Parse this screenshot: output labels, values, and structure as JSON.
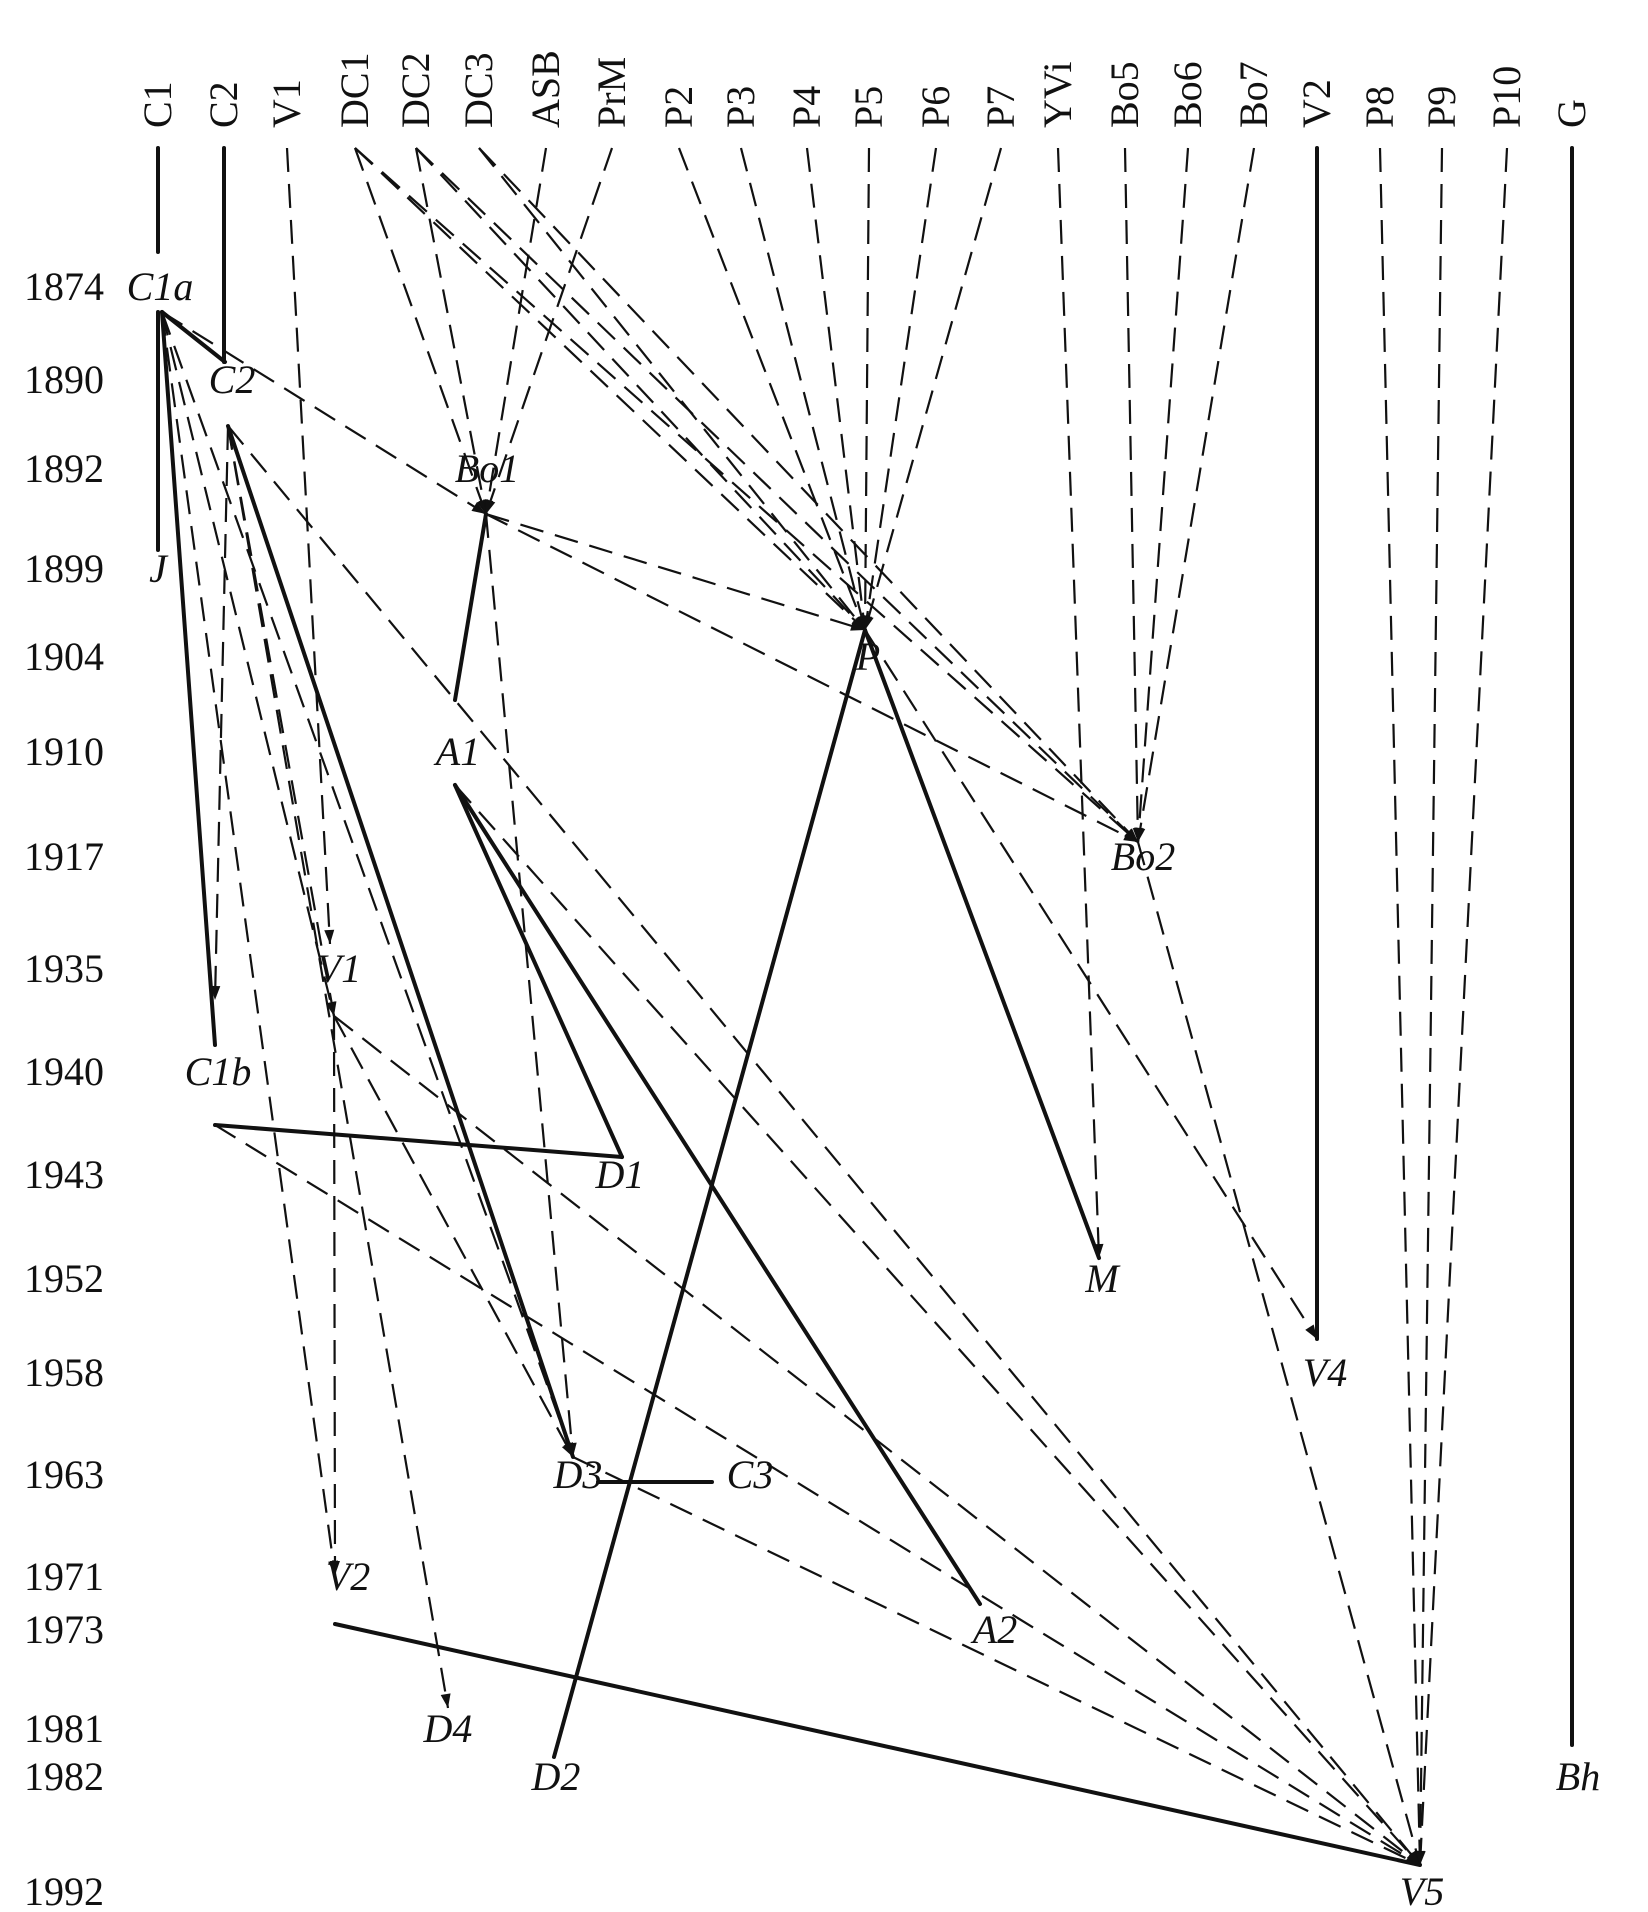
{
  "years": [
    "1874",
    "1890",
    "1892",
    "1899",
    "1904",
    "1910",
    "1917",
    "1935",
    "1940",
    "1943",
    "1952",
    "1958",
    "1963",
    "1971",
    "1973",
    "1981",
    "1982",
    "1992"
  ],
  "sources": [
    "C1",
    "C2",
    "V1",
    "DC1",
    "DC2",
    "DC3",
    "ASB",
    "PrM",
    "P2",
    "P3",
    "P4",
    "P5",
    "P6",
    "P7",
    "YVi",
    "Bo5",
    "Bo6",
    "Bo7",
    "V2",
    "P8",
    "P9",
    "P10",
    "G"
  ],
  "nodes": {
    "C1a": "C1a",
    "C2": "C2",
    "Bo1": "Bo1",
    "J": "J",
    "P": "P",
    "A1": "A1",
    "Bo2": "Bo2",
    "V1": "V1",
    "C1b": "C1b",
    "D1": "D1",
    "M": "M",
    "V4": "V4",
    "D3": "D3",
    "C3": "C3",
    "V2": "V2",
    "A2": "A2",
    "D4": "D4",
    "D2": "D2",
    "Bh": "Bh",
    "V5": "V5"
  },
  "edges": [
    {
      "from": "C1",
      "to": "C1a",
      "style": "solid"
    },
    {
      "from": "C2",
      "to": "C2",
      "style": "solid"
    },
    {
      "from": "C1a",
      "to": "J",
      "style": "solid"
    },
    {
      "from": "C1a",
      "to": "C2",
      "style": "solid"
    },
    {
      "from": "C1a",
      "to": "C1b",
      "style": "solid"
    },
    {
      "from": "C1a",
      "to": "Bo1",
      "style": "dashed"
    },
    {
      "from": "C1a",
      "to": "V1",
      "style": "dashed"
    },
    {
      "from": "C1a",
      "to": "V2",
      "style": "dashed"
    },
    {
      "from": "C1a",
      "to": "D3",
      "style": "dashed"
    },
    {
      "from": "C2",
      "to": "C1b",
      "style": "dashed"
    },
    {
      "from": "C2",
      "to": "V1",
      "style": "dashed"
    },
    {
      "from": "C2",
      "to": "D3",
      "style": "solid"
    },
    {
      "from": "C2",
      "to": "D4",
      "style": "dashed"
    },
    {
      "from": "C2",
      "to": "V5",
      "style": "dashed"
    },
    {
      "from": "V1",
      "to": "V1",
      "style": "dashed"
    },
    {
      "from": "DC1",
      "to": "Bo1",
      "style": "dashed"
    },
    {
      "from": "DC2",
      "to": "Bo1",
      "style": "dashed"
    },
    {
      "from": "ASB",
      "to": "Bo1",
      "style": "dashed"
    },
    {
      "from": "PrM",
      "to": "Bo1",
      "style": "dashed"
    },
    {
      "from": "DC1",
      "to": "P",
      "style": "dashed"
    },
    {
      "from": "DC2",
      "to": "P",
      "style": "dashed"
    },
    {
      "from": "DC3",
      "to": "P",
      "style": "dashed"
    },
    {
      "from": "DC1",
      "to": "Bo2",
      "style": "dashed"
    },
    {
      "from": "DC2",
      "to": "Bo2",
      "style": "dashed"
    },
    {
      "from": "DC3",
      "to": "Bo2",
      "style": "dashed"
    },
    {
      "from": "P2",
      "to": "P",
      "style": "dashed"
    },
    {
      "from": "P3",
      "to": "P",
      "style": "dashed"
    },
    {
      "from": "P4",
      "to": "P",
      "style": "dashed"
    },
    {
      "from": "P5",
      "to": "P",
      "style": "dashed"
    },
    {
      "from": "P6",
      "to": "P",
      "style": "dashed"
    },
    {
      "from": "P7",
      "to": "P",
      "style": "dashed"
    },
    {
      "from": "Bo5",
      "to": "Bo2",
      "style": "dashed"
    },
    {
      "from": "Bo6",
      "to": "Bo2",
      "style": "dashed"
    },
    {
      "from": "Bo7",
      "to": "Bo2",
      "style": "dashed"
    },
    {
      "from": "YVi",
      "to": "M",
      "style": "dashed"
    },
    {
      "from": "Bo1",
      "to": "P",
      "style": "dashed"
    },
    {
      "from": "Bo1",
      "to": "Bo2",
      "style": "dashed"
    },
    {
      "from": "Bo1",
      "to": "A1",
      "style": "solid"
    },
    {
      "from": "Bo1",
      "to": "D3",
      "style": "dashed"
    },
    {
      "from": "P",
      "to": "D2",
      "style": "solid"
    },
    {
      "from": "P",
      "to": "M",
      "style": "solid"
    },
    {
      "from": "P",
      "to": "V4",
      "style": "dashed"
    },
    {
      "from": "A1",
      "to": "D1",
      "style": "solid"
    },
    {
      "from": "A1",
      "to": "A2",
      "style": "solid"
    },
    {
      "from": "C1b",
      "to": "D1",
      "style": "solid"
    },
    {
      "from": "C1b",
      "to": "V5",
      "style": "dashed"
    },
    {
      "from": "V1",
      "to": "D3",
      "style": "dashed"
    },
    {
      "from": "V1",
      "to": "V2",
      "style": "dashed"
    },
    {
      "from": "V1",
      "to": "V5",
      "style": "dashed"
    },
    {
      "from": "D3",
      "to": "C3",
      "style": "solid"
    },
    {
      "from": "D3",
      "to": "V5",
      "style": "dashed"
    },
    {
      "from": "V2",
      "to": "V4",
      "style": "solid"
    },
    {
      "from": "V2",
      "to": "V5",
      "style": "solid"
    },
    {
      "from": "Bo2",
      "to": "V5",
      "style": "dashed"
    },
    {
      "from": "P8",
      "to": "V5",
      "style": "dashed"
    },
    {
      "from": "P9",
      "to": "V5",
      "style": "dashed"
    },
    {
      "from": "P10",
      "to": "V5",
      "style": "dashed"
    },
    {
      "from": "G",
      "to": "Bh",
      "style": "solid"
    },
    {
      "from": "A1",
      "to": "V5",
      "style": "dashed"
    }
  ]
}
